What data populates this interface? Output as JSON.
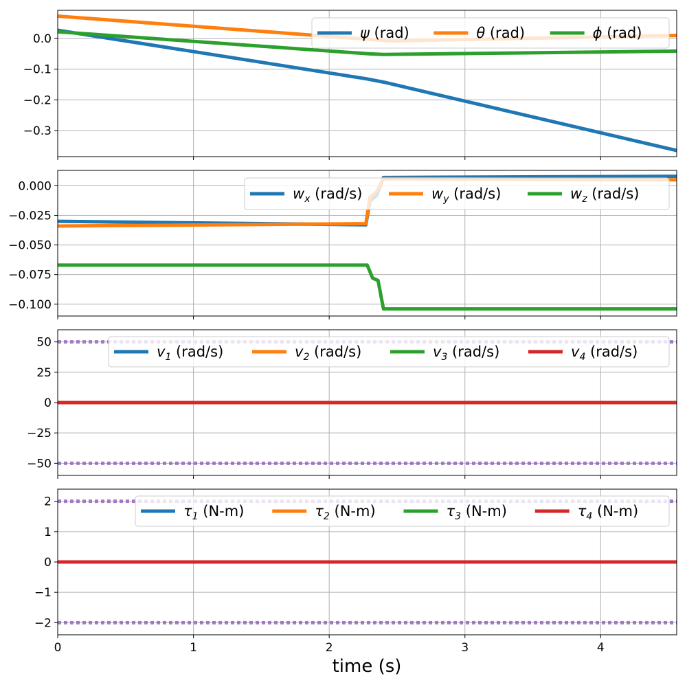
{
  "chart_data": {
    "type": "line",
    "xlabel": "time (s)",
    "xlim": [
      0,
      4.56
    ],
    "x_ticks": [
      0,
      1,
      2,
      3,
      4
    ],
    "x_tick_labels": [
      "0",
      "1",
      "2",
      "3",
      "4"
    ],
    "grid": true,
    "panels": [
      {
        "id": "attitude",
        "ylim": [
          -0.385,
          0.092
        ],
        "y_ticks": [
          0.0,
          -0.1,
          -0.2,
          -0.3
        ],
        "y_tick_labels": [
          "0.0",
          "−0.1",
          "−0.2",
          "−0.3"
        ],
        "legend_position": "top-right",
        "series": [
          {
            "name": "ψ (rad)",
            "name_parts": [
              "ψ",
              " (rad)"
            ],
            "color": "#1f77b4",
            "x": [
              0,
              2.27,
              2.4,
              4.56
            ],
            "y": [
              0.027,
              -0.131,
              -0.142,
              -0.365
            ]
          },
          {
            "name": "θ (rad)",
            "name_parts": [
              "θ",
              " (rad)"
            ],
            "color": "#ff7f0e",
            "x": [
              0,
              2.3,
              2.45,
              4.56
            ],
            "y": [
              0.073,
              -0.003,
              -0.008,
              0.01
            ]
          },
          {
            "name": "ϕ (rad)",
            "name_parts": [
              "ϕ",
              " (rad)"
            ],
            "color": "#2ca02c",
            "x": [
              0,
              2.3,
              2.4,
              4.56
            ],
            "y": [
              0.022,
              -0.05,
              -0.052,
              -0.041
            ]
          }
        ]
      },
      {
        "id": "body-rates",
        "ylim": [
          -0.11,
          0.013
        ],
        "y_ticks": [
          0.0,
          -0.025,
          -0.05,
          -0.075,
          -0.1
        ],
        "y_tick_labels": [
          "0.000",
          "−0.025",
          "−0.050",
          "−0.075",
          "−0.100"
        ],
        "legend_position": "top-right",
        "series": [
          {
            "name": "w_x (rad/s)",
            "name_parts": [
              "w",
              "x",
              " (rad/s)"
            ],
            "color": "#1f77b4",
            "x": [
              0,
              2.27,
              2.3,
              2.35,
              2.4,
              4.56
            ],
            "y": [
              -0.03,
              -0.033,
              -0.013,
              -0.008,
              0.007,
              0.008
            ]
          },
          {
            "name": "w_y (rad/s)",
            "name_parts": [
              "w",
              "y",
              " (rad/s)"
            ],
            "color": "#ff7f0e",
            "x": [
              0,
              2.27,
              2.3,
              2.35,
              2.4,
              4.56
            ],
            "y": [
              -0.034,
              -0.032,
              -0.01,
              -0.005,
              0.006,
              0.005
            ]
          },
          {
            "name": "w_z (rad/s)",
            "name_parts": [
              "w",
              "z",
              " (rad/s)"
            ],
            "color": "#2ca02c",
            "x": [
              0,
              2.28,
              2.32,
              2.36,
              2.4,
              4.56
            ],
            "y": [
              -0.067,
              -0.067,
              -0.078,
              -0.08,
              -0.104,
              -0.104
            ]
          }
        ]
      },
      {
        "id": "wheel-speeds",
        "ylim": [
          -60,
          60
        ],
        "y_ticks": [
          50,
          25,
          0,
          -25,
          -50
        ],
        "y_tick_labels": [
          "50",
          "25",
          "0",
          "−25",
          "−50"
        ],
        "legend_position": "top-right",
        "bounds": {
          "values": [
            50,
            -50
          ],
          "color": "#9467bd"
        },
        "series": [
          {
            "name": "v_1 (rad/s)",
            "name_parts": [
              "v",
              "1",
              " (rad/s)"
            ],
            "color": "#1f77b4",
            "x": [
              0,
              4.56
            ],
            "y": [
              0,
              0
            ]
          },
          {
            "name": "v_2 (rad/s)",
            "name_parts": [
              "v",
              "2",
              " (rad/s)"
            ],
            "color": "#ff7f0e",
            "x": [
              0,
              4.56
            ],
            "y": [
              0,
              0
            ]
          },
          {
            "name": "v_3 (rad/s)",
            "name_parts": [
              "v",
              "3",
              " (rad/s)"
            ],
            "color": "#2ca02c",
            "x": [
              0,
              4.56
            ],
            "y": [
              0,
              0
            ]
          },
          {
            "name": "v_4 (rad/s)",
            "name_parts": [
              "v",
              "4",
              " (rad/s)"
            ],
            "color": "#d62728",
            "x": [
              0,
              4.56
            ],
            "y": [
              0,
              0
            ]
          }
        ]
      },
      {
        "id": "torques",
        "ylim": [
          -2.4,
          2.4
        ],
        "y_ticks": [
          2,
          1,
          0,
          -1,
          -2
        ],
        "y_tick_labels": [
          "2",
          "1",
          "0",
          "−1",
          "−2"
        ],
        "legend_position": "top-right",
        "bounds": {
          "values": [
            2,
            -2
          ],
          "color": "#9467bd"
        },
        "series": [
          {
            "name": "τ_1 (N-m)",
            "name_parts": [
              "τ",
              "1",
              " (N-m)"
            ],
            "color": "#1f77b4",
            "x": [
              0,
              4.56
            ],
            "y": [
              0,
              0
            ]
          },
          {
            "name": "τ_2 (N-m)",
            "name_parts": [
              "τ",
              "2",
              " (N-m)"
            ],
            "color": "#ff7f0e",
            "x": [
              0,
              4.56
            ],
            "y": [
              0,
              0
            ]
          },
          {
            "name": "τ_3 (N-m)",
            "name_parts": [
              "τ",
              "3",
              " (N-m)"
            ],
            "color": "#2ca02c",
            "x": [
              0,
              4.56
            ],
            "y": [
              0,
              0
            ]
          },
          {
            "name": "τ_4 (N-m)",
            "name_parts": [
              "τ",
              "4",
              " (N-m)"
            ],
            "color": "#d62728",
            "x": [
              0,
              4.56
            ],
            "y": [
              0,
              0
            ]
          }
        ]
      }
    ]
  }
}
